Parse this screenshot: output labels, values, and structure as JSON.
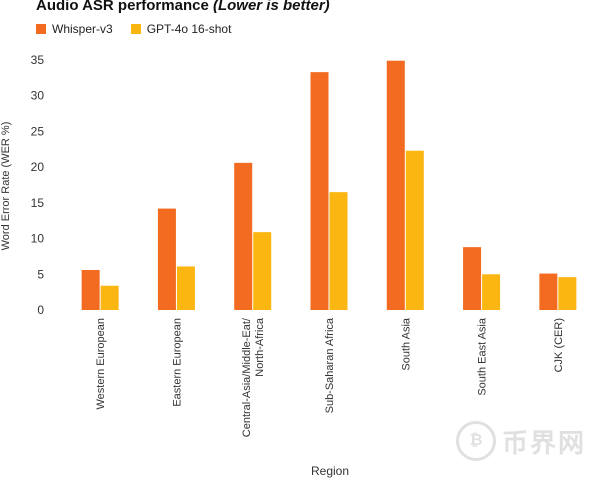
{
  "title": {
    "main": "Audio ASR performance ",
    "sub": "(Lower is better)"
  },
  "watermark": {
    "icon": "bitcoin-coin-icon",
    "text": "币界网"
  },
  "chart_data": {
    "type": "bar",
    "categories": [
      "Western European",
      "Eastern European",
      "Central-Asia/Middle-Eat/ North-Africa",
      "Sub-Saharan Africa",
      "South Asia",
      "South East Asia",
      "CJK (CER)"
    ],
    "series": [
      {
        "name": "Whisper-v3",
        "color": "#f26b21",
        "values": [
          5.6,
          14.2,
          20.6,
          33.3,
          34.9,
          8.8,
          5.1
        ]
      },
      {
        "name": "GPT-4o 16-shot",
        "color": "#fbb612",
        "values": [
          3.4,
          6.1,
          10.9,
          16.5,
          22.3,
          5.0,
          4.6
        ]
      }
    ],
    "xlabel": "Region",
    "ylabel": "Word Error Rate (WER %)",
    "ylim": [
      0,
      35
    ],
    "yticks": [
      0,
      5,
      10,
      15,
      20,
      25,
      30,
      35
    ],
    "grid": false,
    "legend_position": "top-left"
  }
}
